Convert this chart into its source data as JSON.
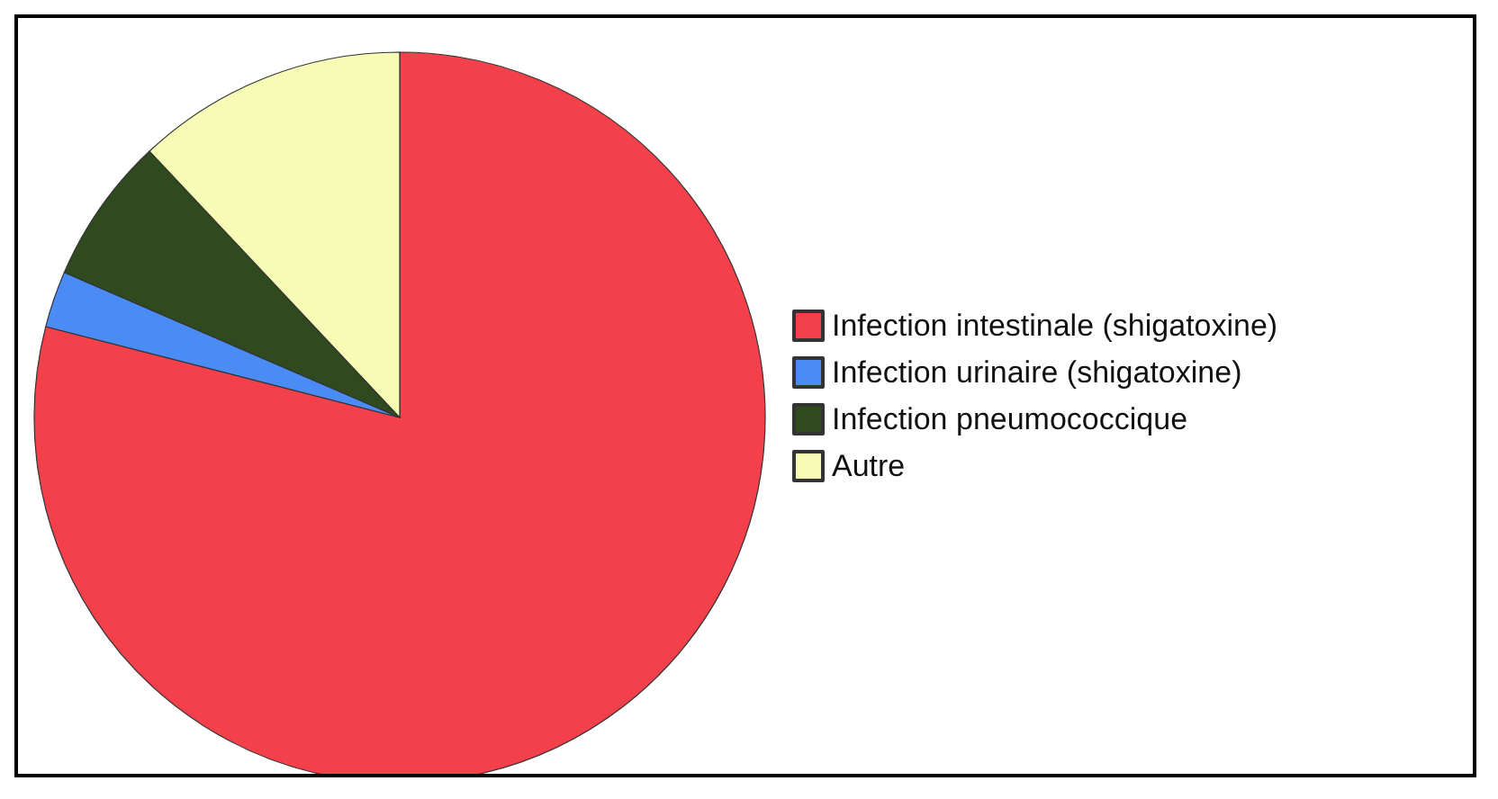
{
  "chart_data": {
    "type": "pie",
    "categories": [
      "Infection intestinale (shigatoxine)",
      "Infection urinaire (shigatoxine)",
      "Infection pneumococcique",
      "Autre"
    ],
    "values": [
      79,
      2.5,
      6.5,
      12
    ],
    "colors": [
      "#f4404a",
      "#4a8cf4",
      "#2f4a1e",
      "#f6fbb6"
    ],
    "legend": "right"
  }
}
